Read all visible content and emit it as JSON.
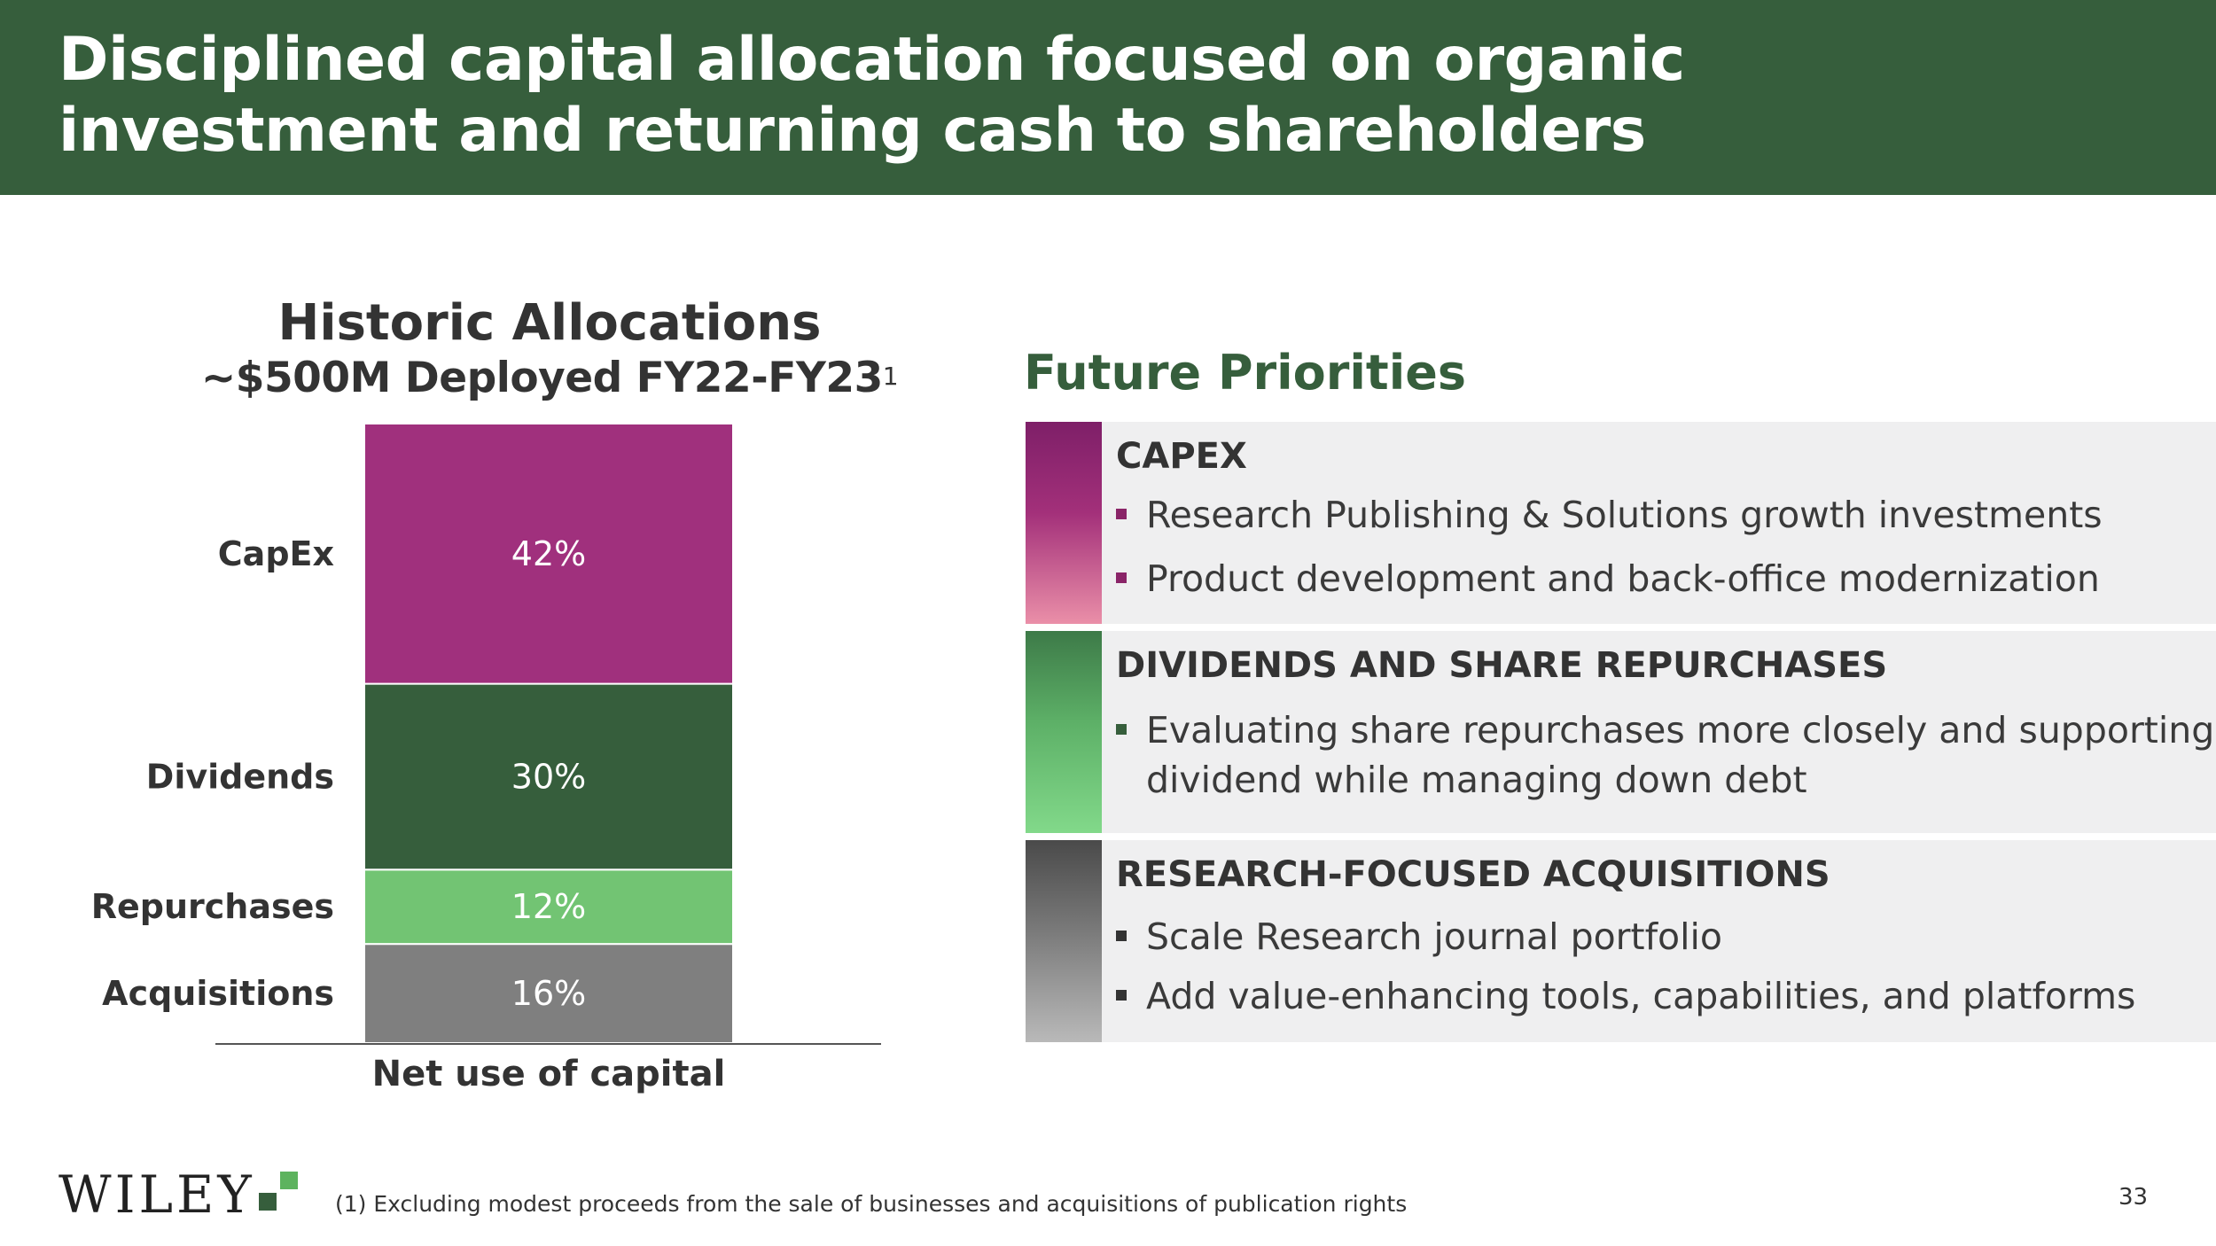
{
  "header": {
    "title_line1": "Disciplined capital allocation focused on organic",
    "title_line2": "investment and returning cash to shareholders"
  },
  "historic": {
    "title": "Historic Allocations",
    "subtitle": "~$500M Deployed FY22-FY23",
    "subtitle_footnote_ref": "1"
  },
  "chart_data": {
    "type": "bar",
    "stacked": true,
    "title": "Historic Allocations",
    "subtitle": "~$500M Deployed FY22-FY23",
    "categories": [
      "Net use of capital"
    ],
    "xlabel": "Net use of capital",
    "unit": "%",
    "ylim": [
      0,
      100
    ],
    "grid": false,
    "series": [
      {
        "name": "Acquisitions",
        "values": [
          16
        ],
        "label": "16%",
        "color": "#7f7f7f"
      },
      {
        "name": "Repurchases",
        "values": [
          12
        ],
        "label": "12%",
        "color": "#72c473"
      },
      {
        "name": "Dividends",
        "values": [
          30
        ],
        "label": "30%",
        "color": "#365e3c"
      },
      {
        "name": "CapEx",
        "values": [
          42
        ],
        "label": "42%",
        "color": "#a0307d"
      }
    ]
  },
  "future": {
    "title": "Future Priorities",
    "panels": [
      {
        "title": "CAPEX",
        "bullet_color": "#8a2468",
        "bullets": [
          "Research Publishing & Solutions growth investments",
          "Product development and back-office modernization"
        ]
      },
      {
        "title": "DIVIDENDS AND SHARE REPURCHASES",
        "bullet_color": "#365e3c",
        "bullets": [
          "Evaluating share repurchases more closely and supporting",
          "dividend while managing down debt"
        ]
      },
      {
        "title": "RESEARCH-FOCUSED ACQUISITIONS",
        "bullet_color": "#333333",
        "bullets": [
          "Scale Research journal portfolio",
          "Add value-enhancing tools, capabilities, and platforms"
        ]
      }
    ]
  },
  "footer": {
    "logo_text": "WILEY",
    "footnote": "(1)  Excluding  modest  proceeds  from  the  sale  of  businesses  and  acquisitions  of  publication  rights",
    "page_number": "33"
  },
  "colors": {
    "brand_green": "#365e3c",
    "logo_green": "#5db35e"
  }
}
